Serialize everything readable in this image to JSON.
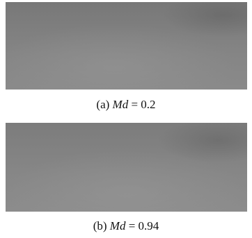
{
  "panels": [
    {
      "label": "(a)",
      "symbol": "Md",
      "value": "= 0.2"
    },
    {
      "label": "(b)",
      "symbol": "Md",
      "value": "= 0.94"
    }
  ]
}
